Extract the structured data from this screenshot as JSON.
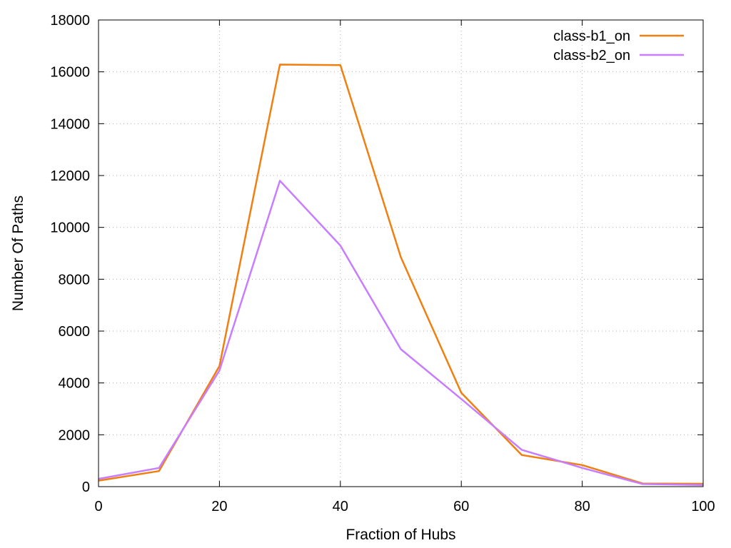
{
  "chart_data": {
    "type": "line",
    "title": "",
    "xlabel": "Fraction of Hubs",
    "ylabel": "Number Of Paths",
    "xlim": [
      0,
      100
    ],
    "ylim": [
      0,
      18000
    ],
    "xticks": [
      0,
      20,
      40,
      60,
      80,
      100
    ],
    "yticks": [
      0,
      2000,
      4000,
      6000,
      8000,
      10000,
      12000,
      14000,
      16000,
      18000
    ],
    "grid": true,
    "legend_position": "top-right",
    "x": [
      0,
      10,
      20,
      30,
      40,
      50,
      60,
      70,
      80,
      90,
      100
    ],
    "series": [
      {
        "name": "class-b1_on",
        "color": "#f07f12",
        "values": [
          230,
          600,
          4650,
          16280,
          16260,
          8850,
          3620,
          1220,
          830,
          120,
          110
        ]
      },
      {
        "name": "class-b2_on",
        "color": "#c77dff",
        "values": [
          300,
          720,
          4480,
          11800,
          9300,
          5300,
          3380,
          1420,
          720,
          100,
          60
        ]
      }
    ]
  }
}
